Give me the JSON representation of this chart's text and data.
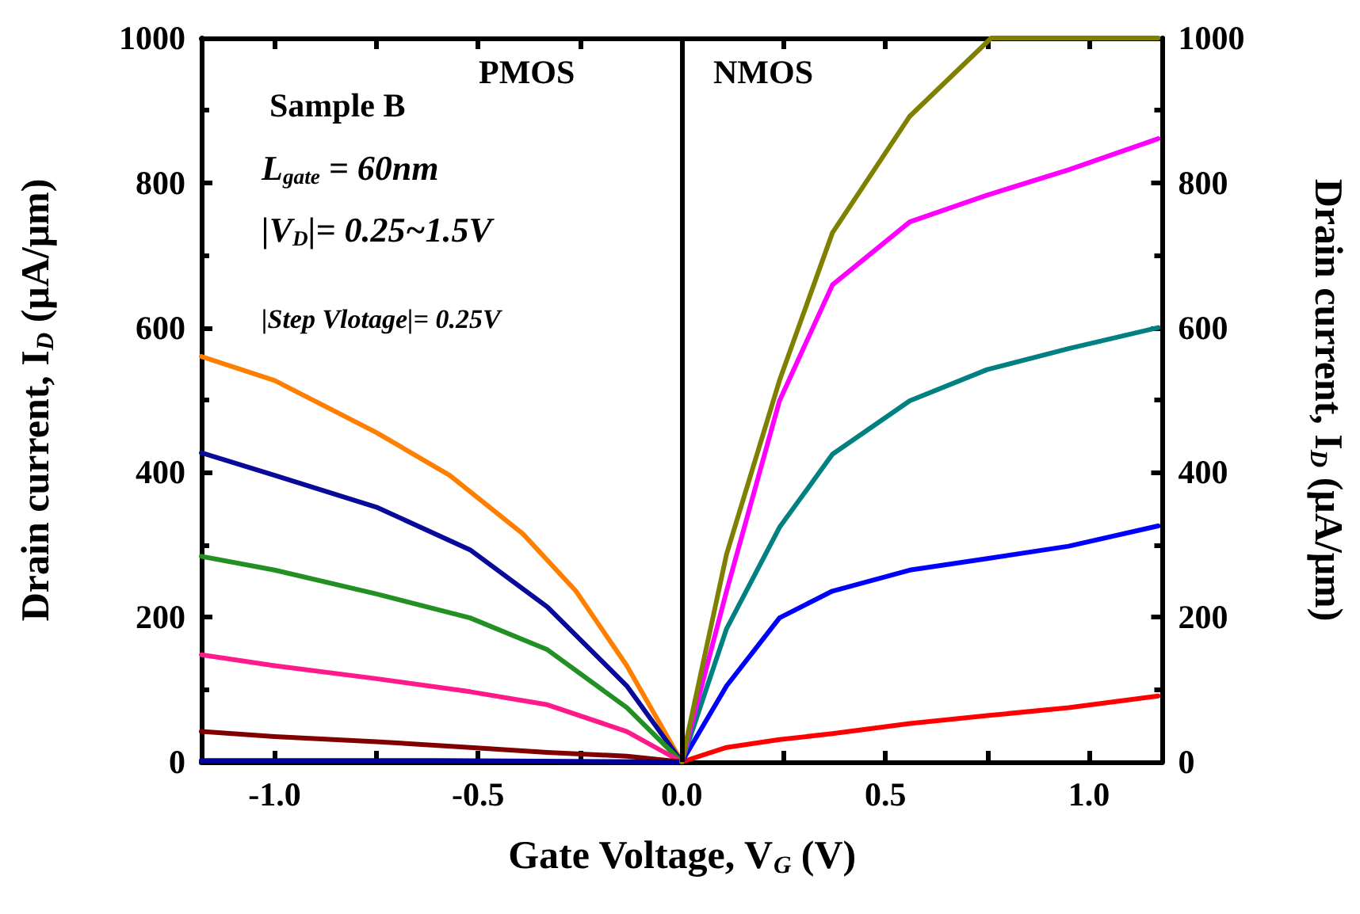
{
  "chart_data": {
    "type": "line",
    "xlabel": "Gate Voltage, V$_{G}$ (V)",
    "ylabel": "Drain current, I$_{D}$ (μA/μm)",
    "y2label": "Drain current, I$_{D}$ (μA/μm)",
    "annotations": [
      "Sample B",
      "L$_{gate}$ = 60nm",
      "|V$_{D}$|= 0.25~1.5V",
      "|Step Vlotage|= 0.25V",
      "PMOS",
      "NMOS"
    ],
    "series": [
      {
        "color": "#ff8000",
        "x": [
          -1.18,
          -1.0,
          -0.75,
          -0.57,
          -0.39,
          -0.26,
          -0.135,
          0
        ],
        "values": [
          560,
          527,
          455,
          396,
          315,
          236,
          133,
          0
        ]
      },
      {
        "color": "#0a0a9a",
        "x": [
          -1.18,
          -1.0,
          -0.75,
          -0.52,
          -0.33,
          -0.135,
          0
        ],
        "values": [
          427,
          396,
          352,
          293,
          214,
          105,
          0
        ]
      },
      {
        "color": "#229022",
        "x": [
          -1.18,
          -1.0,
          -0.75,
          -0.52,
          -0.33,
          -0.135,
          0
        ],
        "values": [
          284,
          265,
          232,
          199,
          155,
          75,
          0
        ]
      },
      {
        "color": "#ff1a8c",
        "x": [
          -1.18,
          -1.0,
          -0.75,
          -0.52,
          -0.33,
          -0.135,
          0
        ],
        "values": [
          148,
          133,
          115,
          97,
          79,
          42,
          0
        ]
      },
      {
        "color": "#800000",
        "x": [
          -1.18,
          -1.0,
          -0.75,
          -0.52,
          -0.33,
          -0.135,
          0
        ],
        "values": [
          42,
          35,
          28,
          20,
          13,
          8,
          0
        ]
      },
      {
        "color": "#0000a0",
        "x": [
          -1.18,
          -0.6,
          0
        ],
        "values": [
          2,
          2,
          0
        ]
      },
      {
        "color": "#ff0000",
        "x": [
          0,
          0.11,
          0.24,
          0.37,
          0.56,
          0.75,
          0.95,
          1.17
        ],
        "values": [
          0,
          20,
          31,
          39,
          53,
          64,
          75,
          91
        ]
      },
      {
        "color": "#0000ff",
        "x": [
          0,
          0.11,
          0.24,
          0.37,
          0.56,
          0.75,
          0.95,
          1.17
        ],
        "values": [
          0,
          105,
          199,
          236,
          265,
          281,
          298,
          326
        ]
      },
      {
        "color": "#008080",
        "x": [
          0,
          0.11,
          0.24,
          0.37,
          0.56,
          0.75,
          0.95,
          1.17
        ],
        "values": [
          0,
          184,
          324,
          425,
          499,
          542,
          571,
          600
        ]
      },
      {
        "color": "#ff00ff",
        "x": [
          0,
          0.11,
          0.24,
          0.37,
          0.56,
          0.75,
          0.95,
          1.17
        ],
        "values": [
          0,
          236,
          499,
          659,
          746,
          783,
          818,
          861
        ]
      },
      {
        "color": "#808000",
        "x": [
          0,
          0.11,
          0.24,
          0.37,
          0.56,
          0.76,
          0.95,
          1.17
        ],
        "values": [
          0,
          287,
          527,
          731,
          892,
          1000,
          1000,
          1000
        ]
      }
    ],
    "xlim": [
      -1.18,
      1.18
    ],
    "xticks": [
      {
        "value": -1,
        "label": "-1.0"
      },
      {
        "value": -0.75,
        "label": null
      },
      {
        "value": -0.5,
        "label": "-0.5"
      },
      {
        "value": -0.25,
        "label": null
      },
      {
        "value": 0,
        "label": "0.0"
      },
      {
        "value": 0.25,
        "label": null
      },
      {
        "value": 0.5,
        "label": "0.5"
      },
      {
        "value": 0.75,
        "label": null
      },
      {
        "value": 1,
        "label": "1.0"
      }
    ],
    "ylim": [
      0,
      1000
    ],
    "yticks": [
      0,
      200,
      400,
      600,
      800,
      1000
    ],
    "y2lim": [
      0,
      1000
    ],
    "y2ticks": [
      0,
      200,
      400,
      600,
      800,
      1000
    ],
    "ref_lines": [
      {
        "axis": "x",
        "value": 0,
        "color": "#000000"
      }
    ],
    "grid": false,
    "marker": "none",
    "line_style": "solid"
  }
}
